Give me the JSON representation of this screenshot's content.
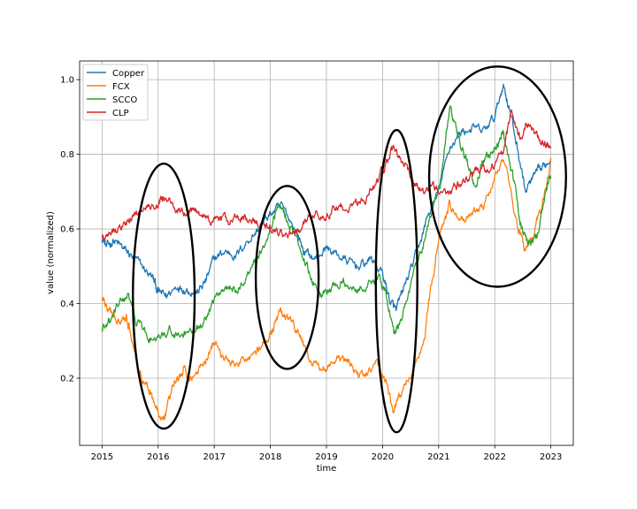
{
  "chart_data": {
    "type": "line",
    "title": "",
    "xlabel": "time",
    "ylabel": "value (normalized)",
    "xlim": [
      2014.6,
      2023.4
    ],
    "ylim": [
      0.02,
      1.05
    ],
    "x_ticks": [
      2015,
      2016,
      2017,
      2018,
      2019,
      2020,
      2021,
      2022,
      2023
    ],
    "x_tick_labels": [
      "2015",
      "2016",
      "2017",
      "2018",
      "2019",
      "2020",
      "2021",
      "2022",
      "2023"
    ],
    "y_ticks": [
      0.2,
      0.4,
      0.6,
      0.8,
      1.0
    ],
    "y_tick_labels": [
      "0.2",
      "0.4",
      "0.6",
      "0.8",
      "1.0"
    ],
    "grid": true,
    "legend_position": "top-left",
    "series": [
      {
        "name": "Copper",
        "color": "#1f77b4",
        "points": [
          [
            2015.0,
            0.58
          ],
          [
            2015.08,
            0.55
          ],
          [
            2015.2,
            0.57
          ],
          [
            2015.35,
            0.55
          ],
          [
            2015.5,
            0.53
          ],
          [
            2015.7,
            0.5
          ],
          [
            2015.9,
            0.47
          ],
          [
            2016.0,
            0.43
          ],
          [
            2016.15,
            0.42
          ],
          [
            2016.35,
            0.45
          ],
          [
            2016.5,
            0.44
          ],
          [
            2016.7,
            0.43
          ],
          [
            2016.85,
            0.46
          ],
          [
            2017.0,
            0.52
          ],
          [
            2017.2,
            0.54
          ],
          [
            2017.4,
            0.53
          ],
          [
            2017.6,
            0.57
          ],
          [
            2017.8,
            0.6
          ],
          [
            2018.0,
            0.64
          ],
          [
            2018.2,
            0.66
          ],
          [
            2018.45,
            0.6
          ],
          [
            2018.6,
            0.54
          ],
          [
            2018.8,
            0.52
          ],
          [
            2019.0,
            0.55
          ],
          [
            2019.2,
            0.53
          ],
          [
            2019.4,
            0.51
          ],
          [
            2019.6,
            0.5
          ],
          [
            2019.8,
            0.52
          ],
          [
            2020.0,
            0.48
          ],
          [
            2020.15,
            0.4
          ],
          [
            2020.25,
            0.38
          ],
          [
            2020.4,
            0.45
          ],
          [
            2020.6,
            0.53
          ],
          [
            2020.8,
            0.63
          ],
          [
            2021.0,
            0.7
          ],
          [
            2021.2,
            0.82
          ],
          [
            2021.4,
            0.86
          ],
          [
            2021.6,
            0.87
          ],
          [
            2021.8,
            0.86
          ],
          [
            2022.0,
            0.9
          ],
          [
            2022.15,
            0.99
          ],
          [
            2022.25,
            0.93
          ],
          [
            2022.4,
            0.82
          ],
          [
            2022.55,
            0.7
          ],
          [
            2022.7,
            0.74
          ],
          [
            2022.85,
            0.76
          ],
          [
            2023.0,
            0.79
          ]
        ]
      },
      {
        "name": "FCX",
        "color": "#ff7f0e",
        "points": [
          [
            2015.0,
            0.42
          ],
          [
            2015.1,
            0.38
          ],
          [
            2015.25,
            0.36
          ],
          [
            2015.4,
            0.37
          ],
          [
            2015.5,
            0.34
          ],
          [
            2015.65,
            0.22
          ],
          [
            2015.8,
            0.18
          ],
          [
            2015.9,
            0.15
          ],
          [
            2016.05,
            0.08
          ],
          [
            2016.15,
            0.12
          ],
          [
            2016.3,
            0.19
          ],
          [
            2016.45,
            0.22
          ],
          [
            2016.6,
            0.2
          ],
          [
            2016.8,
            0.24
          ],
          [
            2017.0,
            0.3
          ],
          [
            2017.2,
            0.25
          ],
          [
            2017.4,
            0.23
          ],
          [
            2017.6,
            0.26
          ],
          [
            2017.8,
            0.28
          ],
          [
            2018.0,
            0.31
          ],
          [
            2018.15,
            0.37
          ],
          [
            2018.3,
            0.36
          ],
          [
            2018.5,
            0.32
          ],
          [
            2018.7,
            0.25
          ],
          [
            2018.9,
            0.22
          ],
          [
            2019.1,
            0.24
          ],
          [
            2019.3,
            0.25
          ],
          [
            2019.5,
            0.22
          ],
          [
            2019.7,
            0.2
          ],
          [
            2019.9,
            0.24
          ],
          [
            2020.05,
            0.2
          ],
          [
            2020.2,
            0.11
          ],
          [
            2020.35,
            0.16
          ],
          [
            2020.55,
            0.23
          ],
          [
            2020.75,
            0.31
          ],
          [
            2020.9,
            0.48
          ],
          [
            2021.05,
            0.6
          ],
          [
            2021.2,
            0.66
          ],
          [
            2021.4,
            0.62
          ],
          [
            2021.6,
            0.64
          ],
          [
            2021.8,
            0.66
          ],
          [
            2022.0,
            0.74
          ],
          [
            2022.2,
            0.78
          ],
          [
            2022.4,
            0.61
          ],
          [
            2022.55,
            0.54
          ],
          [
            2022.7,
            0.58
          ],
          [
            2022.85,
            0.67
          ],
          [
            2023.0,
            0.79
          ]
        ]
      },
      {
        "name": "SCCO",
        "color": "#2ca02c",
        "points": [
          [
            2015.0,
            0.33
          ],
          [
            2015.15,
            0.35
          ],
          [
            2015.3,
            0.4
          ],
          [
            2015.45,
            0.42
          ],
          [
            2015.6,
            0.36
          ],
          [
            2015.8,
            0.31
          ],
          [
            2016.0,
            0.3
          ],
          [
            2016.2,
            0.33
          ],
          [
            2016.4,
            0.31
          ],
          [
            2016.6,
            0.32
          ],
          [
            2016.8,
            0.34
          ],
          [
            2017.0,
            0.41
          ],
          [
            2017.2,
            0.45
          ],
          [
            2017.4,
            0.43
          ],
          [
            2017.6,
            0.48
          ],
          [
            2017.8,
            0.53
          ],
          [
            2018.0,
            0.6
          ],
          [
            2018.15,
            0.67
          ],
          [
            2018.3,
            0.63
          ],
          [
            2018.5,
            0.56
          ],
          [
            2018.7,
            0.48
          ],
          [
            2018.9,
            0.42
          ],
          [
            2019.1,
            0.44
          ],
          [
            2019.3,
            0.46
          ],
          [
            2019.5,
            0.44
          ],
          [
            2019.7,
            0.45
          ],
          [
            2019.9,
            0.47
          ],
          [
            2020.05,
            0.44
          ],
          [
            2020.2,
            0.32
          ],
          [
            2020.3,
            0.34
          ],
          [
            2020.5,
            0.45
          ],
          [
            2020.7,
            0.55
          ],
          [
            2020.9,
            0.65
          ],
          [
            2021.05,
            0.75
          ],
          [
            2021.2,
            0.92
          ],
          [
            2021.35,
            0.84
          ],
          [
            2021.5,
            0.78
          ],
          [
            2021.65,
            0.7
          ],
          [
            2021.8,
            0.79
          ],
          [
            2022.0,
            0.81
          ],
          [
            2022.15,
            0.86
          ],
          [
            2022.3,
            0.76
          ],
          [
            2022.45,
            0.62
          ],
          [
            2022.6,
            0.56
          ],
          [
            2022.75,
            0.58
          ],
          [
            2022.9,
            0.7
          ],
          [
            2023.0,
            0.74
          ]
        ]
      },
      {
        "name": "CLP",
        "color": "#d62728",
        "points": [
          [
            2015.0,
            0.58
          ],
          [
            2015.2,
            0.6
          ],
          [
            2015.4,
            0.61
          ],
          [
            2015.6,
            0.64
          ],
          [
            2015.8,
            0.66
          ],
          [
            2016.0,
            0.67
          ],
          [
            2016.1,
            0.69
          ],
          [
            2016.3,
            0.66
          ],
          [
            2016.5,
            0.64
          ],
          [
            2016.7,
            0.65
          ],
          [
            2016.9,
            0.62
          ],
          [
            2017.1,
            0.63
          ],
          [
            2017.3,
            0.62
          ],
          [
            2017.5,
            0.63
          ],
          [
            2017.7,
            0.62
          ],
          [
            2017.9,
            0.61
          ],
          [
            2018.1,
            0.6
          ],
          [
            2018.3,
            0.58
          ],
          [
            2018.5,
            0.6
          ],
          [
            2018.7,
            0.63
          ],
          [
            2018.9,
            0.64
          ],
          [
            2019.1,
            0.65
          ],
          [
            2019.3,
            0.66
          ],
          [
            2019.5,
            0.67
          ],
          [
            2019.7,
            0.68
          ],
          [
            2019.9,
            0.72
          ],
          [
            2020.05,
            0.78
          ],
          [
            2020.2,
            0.82
          ],
          [
            2020.35,
            0.79
          ],
          [
            2020.55,
            0.73
          ],
          [
            2020.75,
            0.7
          ],
          [
            2020.95,
            0.71
          ],
          [
            2021.15,
            0.69
          ],
          [
            2021.35,
            0.72
          ],
          [
            2021.55,
            0.74
          ],
          [
            2021.75,
            0.76
          ],
          [
            2021.95,
            0.77
          ],
          [
            2022.15,
            0.8
          ],
          [
            2022.3,
            0.92
          ],
          [
            2022.45,
            0.84
          ],
          [
            2022.6,
            0.89
          ],
          [
            2022.75,
            0.85
          ],
          [
            2022.9,
            0.83
          ],
          [
            2023.0,
            0.82
          ]
        ]
      }
    ],
    "annotations": [
      {
        "type": "ellipse",
        "cx": 2016.1,
        "cy": 0.42,
        "rx": 0.55,
        "ry": 0.355
      },
      {
        "type": "ellipse",
        "cx": 2018.3,
        "cy": 0.47,
        "rx": 0.56,
        "ry": 0.245
      },
      {
        "type": "ellipse",
        "cx": 2020.25,
        "cy": 0.46,
        "rx": 0.37,
        "ry": 0.405
      },
      {
        "type": "ellipse",
        "cx": 2022.05,
        "cy": 0.74,
        "rx": 1.22,
        "ry": 0.295
      }
    ]
  }
}
